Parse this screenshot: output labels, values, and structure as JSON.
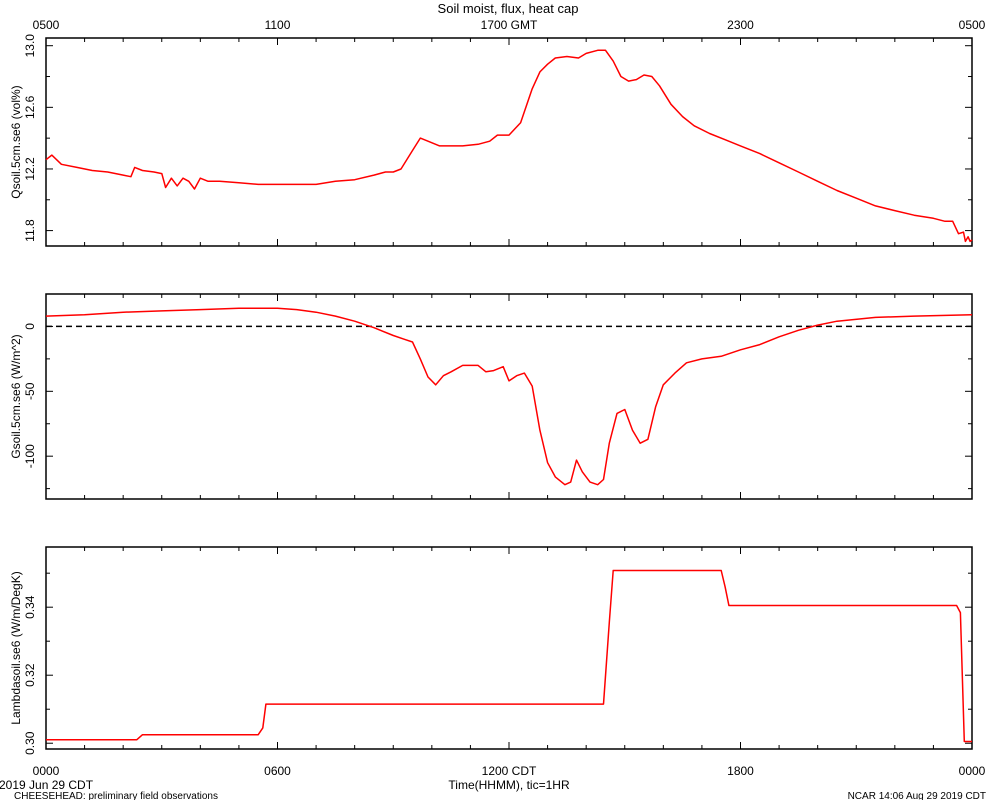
{
  "figure": {
    "title": "Soil moist, flux, heat cap",
    "top_axis_ticks": [
      "0500",
      "1100",
      "1700 GMT",
      "2300",
      "0500"
    ],
    "bottom_axis_ticks": [
      "0000",
      "0600",
      "1200 CDT",
      "1800",
      "0000"
    ],
    "xlabel": "Time(HHMM), tic=1HR",
    "date_label": "2019 Jun 29 CDT",
    "footer_left": "CHEESEHEAD: preliminary field observations",
    "footer_right": "NCAR 14:06 Aug 29 2019 CDT",
    "colors": {
      "series": "#ff0000",
      "axis": "#000000",
      "zero_line": "#000000"
    }
  },
  "chart_data": [
    {
      "type": "line",
      "ylabel": "Qsoil.5cm.se6 (vol%)",
      "ylim": [
        11.7,
        13.05
      ],
      "yticks": [
        11.8,
        12.2,
        12.6,
        13.0
      ],
      "ytick_labels": [
        "11.8",
        "12.2",
        "12.6",
        "13.0"
      ],
      "xlim": [
        0,
        24
      ],
      "series": [
        {
          "points": [
            [
              0,
              12.26
            ],
            [
              0.15,
              12.29
            ],
            [
              0.4,
              12.23
            ],
            [
              0.8,
              12.21
            ],
            [
              1.2,
              12.19
            ],
            [
              1.6,
              12.18
            ],
            [
              2.0,
              12.16
            ],
            [
              2.2,
              12.15
            ],
            [
              2.3,
              12.21
            ],
            [
              2.5,
              12.19
            ],
            [
              2.8,
              12.18
            ],
            [
              3.0,
              12.17
            ],
            [
              3.1,
              12.08
            ],
            [
              3.25,
              12.14
            ],
            [
              3.4,
              12.09
            ],
            [
              3.55,
              12.14
            ],
            [
              3.7,
              12.12
            ],
            [
              3.85,
              12.07
            ],
            [
              4.0,
              12.14
            ],
            [
              4.2,
              12.12
            ],
            [
              4.5,
              12.12
            ],
            [
              5.0,
              12.11
            ],
            [
              5.5,
              12.1
            ],
            [
              6.0,
              12.1
            ],
            [
              7.0,
              12.1
            ],
            [
              7.5,
              12.12
            ],
            [
              8.0,
              12.13
            ],
            [
              8.5,
              12.16
            ],
            [
              8.8,
              12.18
            ],
            [
              9.0,
              12.18
            ],
            [
              9.2,
              12.2
            ],
            [
              9.5,
              12.32
            ],
            [
              9.7,
              12.4
            ],
            [
              9.9,
              12.38
            ],
            [
              10.2,
              12.35
            ],
            [
              10.8,
              12.35
            ],
            [
              11.2,
              12.36
            ],
            [
              11.5,
              12.38
            ],
            [
              11.7,
              12.42
            ],
            [
              12.0,
              12.42
            ],
            [
              12.3,
              12.5
            ],
            [
              12.6,
              12.72
            ],
            [
              12.8,
              12.83
            ],
            [
              13.0,
              12.88
            ],
            [
              13.2,
              12.92
            ],
            [
              13.5,
              12.93
            ],
            [
              13.8,
              12.92
            ],
            [
              14.0,
              12.95
            ],
            [
              14.3,
              12.97
            ],
            [
              14.5,
              12.97
            ],
            [
              14.7,
              12.9
            ],
            [
              14.9,
              12.8
            ],
            [
              15.1,
              12.77
            ],
            [
              15.3,
              12.78
            ],
            [
              15.5,
              12.81
            ],
            [
              15.7,
              12.8
            ],
            [
              15.9,
              12.74
            ],
            [
              16.2,
              12.62
            ],
            [
              16.5,
              12.54
            ],
            [
              16.8,
              12.48
            ],
            [
              17.2,
              12.43
            ],
            [
              17.6,
              12.39
            ],
            [
              18.0,
              12.35
            ],
            [
              18.5,
              12.3
            ],
            [
              19.0,
              12.24
            ],
            [
              19.5,
              12.18
            ],
            [
              20.0,
              12.12
            ],
            [
              20.5,
              12.06
            ],
            [
              21.0,
              12.01
            ],
            [
              21.5,
              11.96
            ],
            [
              22.0,
              11.93
            ],
            [
              22.5,
              11.9
            ],
            [
              23.0,
              11.88
            ],
            [
              23.3,
              11.86
            ],
            [
              23.5,
              11.86
            ],
            [
              23.65,
              11.78
            ],
            [
              23.78,
              11.79
            ],
            [
              23.83,
              11.73
            ],
            [
              23.9,
              11.76
            ],
            [
              23.95,
              11.73
            ],
            [
              24.0,
              11.74
            ]
          ]
        }
      ]
    },
    {
      "type": "line",
      "ylabel": "Gsoil.5cm.se6 (W/m^2)",
      "ylim": [
        -133,
        25
      ],
      "yticks": [
        -100,
        -50,
        0
      ],
      "ytick_labels": [
        "-100",
        "-50",
        "0"
      ],
      "xlim": [
        0,
        24
      ],
      "zero_line": true,
      "series": [
        {
          "points": [
            [
              0,
              8
            ],
            [
              1,
              9
            ],
            [
              2,
              11
            ],
            [
              3,
              12
            ],
            [
              4,
              13
            ],
            [
              5,
              14
            ],
            [
              6,
              14
            ],
            [
              6.5,
              13
            ],
            [
              7,
              11
            ],
            [
              7.5,
              8
            ],
            [
              8,
              4
            ],
            [
              8.5,
              -1
            ],
            [
              9,
              -7
            ],
            [
              9.3,
              -10
            ],
            [
              9.5,
              -12
            ],
            [
              9.7,
              -25
            ],
            [
              9.9,
              -39
            ],
            [
              10.1,
              -45
            ],
            [
              10.3,
              -38
            ],
            [
              10.5,
              -35
            ],
            [
              10.8,
              -30
            ],
            [
              11.2,
              -30
            ],
            [
              11.4,
              -35
            ],
            [
              11.6,
              -34
            ],
            [
              11.85,
              -31
            ],
            [
              12.0,
              -42
            ],
            [
              12.2,
              -38
            ],
            [
              12.4,
              -36
            ],
            [
              12.6,
              -46
            ],
            [
              12.8,
              -80
            ],
            [
              13.0,
              -105
            ],
            [
              13.2,
              -116
            ],
            [
              13.45,
              -122
            ],
            [
              13.6,
              -120
            ],
            [
              13.75,
              -103
            ],
            [
              13.9,
              -112
            ],
            [
              14.1,
              -120
            ],
            [
              14.3,
              -122
            ],
            [
              14.45,
              -118
            ],
            [
              14.6,
              -90
            ],
            [
              14.8,
              -67
            ],
            [
              15.0,
              -64
            ],
            [
              15.2,
              -80
            ],
            [
              15.4,
              -90
            ],
            [
              15.6,
              -87
            ],
            [
              15.8,
              -62
            ],
            [
              16.0,
              -45
            ],
            [
              16.3,
              -36
            ],
            [
              16.6,
              -28
            ],
            [
              17.0,
              -25
            ],
            [
              17.5,
              -23
            ],
            [
              18.0,
              -18
            ],
            [
              18.5,
              -14
            ],
            [
              19.0,
              -8
            ],
            [
              19.5,
              -3
            ],
            [
              20.0,
              1
            ],
            [
              20.5,
              4
            ],
            [
              21.5,
              7
            ],
            [
              22.5,
              8
            ],
            [
              24.0,
              9
            ]
          ]
        }
      ]
    },
    {
      "type": "line",
      "ylabel": "Lambdasoil.se6 (W/m/DegK)",
      "ylim": [
        0.2983,
        0.3577
      ],
      "yticks": [
        0.3,
        0.32,
        0.34
      ],
      "ytick_labels": [
        "0.30",
        "0.32",
        "0.34"
      ],
      "xlim": [
        0,
        24
      ],
      "series": [
        {
          "points": [
            [
              0,
              0.301
            ],
            [
              2.35,
              0.301
            ],
            [
              2.5,
              0.3025
            ],
            [
              5.5,
              0.3025
            ],
            [
              5.62,
              0.3045
            ],
            [
              5.7,
              0.3115
            ],
            [
              14.45,
              0.3115
            ],
            [
              14.6,
              0.3355
            ],
            [
              14.7,
              0.3508
            ],
            [
              17.5,
              0.3508
            ],
            [
              17.6,
              0.346
            ],
            [
              17.7,
              0.3405
            ],
            [
              23.6,
              0.3405
            ],
            [
              23.7,
              0.3384
            ],
            [
              23.8,
              0.3005
            ],
            [
              24.0,
              0.3005
            ]
          ]
        }
      ]
    }
  ]
}
